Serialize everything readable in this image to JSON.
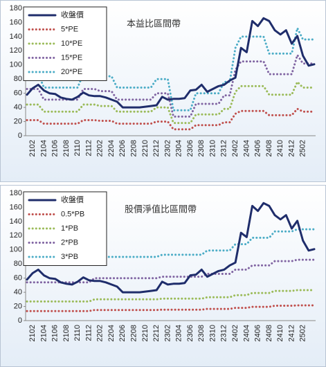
{
  "chart_data": [
    {
      "type": "line",
      "title": "本益比區間帶",
      "legend": "upper left",
      "grid": false,
      "categories": [
        null,
        "2102",
        null,
        "2104",
        null,
        "2106",
        null,
        "2108",
        null,
        "2110",
        null,
        "2112",
        null,
        "2202",
        null,
        "2204",
        null,
        "2206",
        null,
        "2208",
        null,
        "2210",
        null,
        "2212",
        null,
        "2302",
        null,
        "2304",
        null,
        "2306",
        null,
        "2308",
        null,
        "2310",
        null,
        "2312",
        null,
        "2402",
        null,
        "2404",
        null,
        "2406",
        null,
        "2408",
        null,
        "2410",
        null,
        "2412",
        null,
        "2502",
        null,
        null
      ],
      "ylim": [
        0,
        180
      ],
      "yticks": [
        0,
        20,
        40,
        60,
        80,
        100,
        120,
        140,
        160,
        180
      ],
      "series": [
        {
          "name": "收盤價",
          "color": "#1f2d6b",
          "style": "solid",
          "values": [
            58,
            67,
            72,
            64,
            60,
            59,
            54,
            52,
            51,
            55,
            61,
            57,
            56,
            56,
            54,
            51,
            48,
            40,
            40,
            40,
            40,
            41,
            42,
            43,
            55,
            51,
            52,
            52,
            53,
            64,
            65,
            72,
            62,
            66,
            70,
            72,
            78,
            82,
            124,
            118,
            162,
            155,
            166,
            162,
            149,
            143,
            149,
            130,
            141,
            113,
            99,
            101
          ]
        },
        {
          "name": "5*PE",
          "color": "#c0504d",
          "style": "dotted",
          "values": [
            22,
            22,
            22,
            17,
            17,
            17,
            17,
            17,
            17,
            17,
            22,
            22,
            22,
            21,
            21,
            21,
            17,
            17,
            17,
            17,
            17,
            17,
            17,
            20,
            20,
            20,
            9,
            9,
            9,
            9,
            15,
            15,
            15,
            15,
            15,
            19,
            19,
            31,
            35,
            35,
            35,
            35,
            35,
            29,
            29,
            29,
            29,
            29,
            38,
            34,
            34,
            34
          ]
        },
        {
          "name": "10*PE",
          "color": "#9bbb59",
          "style": "dotted",
          "values": [
            44,
            44,
            44,
            34,
            34,
            34,
            34,
            34,
            34,
            34,
            44,
            44,
            44,
            42,
            42,
            42,
            34,
            34,
            34,
            34,
            34,
            34,
            34,
            40,
            40,
            40,
            18,
            18,
            18,
            18,
            30,
            30,
            30,
            30,
            30,
            38,
            38,
            62,
            70,
            70,
            70,
            70,
            70,
            58,
            58,
            58,
            58,
            58,
            76,
            68,
            68,
            68
          ]
        },
        {
          "name": "15*PE",
          "color": "#8064a2",
          "style": "dotted",
          "values": [
            66,
            66,
            66,
            51,
            51,
            51,
            51,
            51,
            51,
            51,
            66,
            66,
            66,
            63,
            63,
            63,
            51,
            51,
            51,
            51,
            51,
            51,
            51,
            60,
            60,
            60,
            27,
            27,
            27,
            27,
            45,
            45,
            45,
            45,
            45,
            57,
            57,
            93,
            105,
            105,
            105,
            105,
            105,
            87,
            87,
            87,
            87,
            87,
            114,
            102,
            102,
            102
          ]
        },
        {
          "name": "20*PE",
          "color": "#4bacc6",
          "style": "dotted",
          "values": [
            88,
            88,
            88,
            68,
            68,
            68,
            68,
            68,
            68,
            68,
            88,
            88,
            88,
            84,
            84,
            84,
            68,
            68,
            68,
            68,
            68,
            68,
            68,
            80,
            80,
            80,
            36,
            36,
            36,
            36,
            60,
            60,
            60,
            60,
            60,
            76,
            76,
            124,
            140,
            140,
            140,
            140,
            140,
            116,
            116,
            116,
            116,
            116,
            152,
            136,
            136,
            136
          ]
        }
      ]
    },
    {
      "type": "line",
      "title": "股價淨值比區間帶",
      "legend": "upper left",
      "grid": false,
      "categories": [
        null,
        "2102",
        null,
        "2104",
        null,
        "2106",
        null,
        "2108",
        null,
        "2110",
        null,
        "2112",
        null,
        "2202",
        null,
        "2204",
        null,
        "2206",
        null,
        "2208",
        null,
        "2210",
        null,
        "2212",
        null,
        "2302",
        null,
        "2304",
        null,
        "2306",
        null,
        "2308",
        null,
        "2310",
        null,
        "2312",
        null,
        "2402",
        null,
        "2404",
        null,
        "2406",
        null,
        "2408",
        null,
        "2410",
        null,
        "2412",
        null,
        "2502",
        null,
        null
      ],
      "ylim": [
        0,
        180
      ],
      "yticks": [
        0,
        20,
        40,
        60,
        80,
        100,
        120,
        140,
        160,
        180
      ],
      "series": [
        {
          "name": "收盤價",
          "color": "#1f2d6b",
          "style": "solid",
          "values": [
            58,
            67,
            72,
            64,
            60,
            59,
            54,
            52,
            51,
            55,
            61,
            57,
            56,
            56,
            54,
            51,
            48,
            40,
            40,
            40,
            40,
            41,
            42,
            43,
            55,
            51,
            52,
            52,
            53,
            64,
            65,
            72,
            62,
            66,
            70,
            72,
            78,
            82,
            124,
            118,
            162,
            155,
            166,
            162,
            149,
            143,
            149,
            130,
            141,
            113,
            99,
            101
          ]
        },
        {
          "name": "0.5*PB",
          "color": "#c0504d",
          "style": "dotted",
          "values": [
            13.5,
            13.5,
            13.5,
            13.5,
            13.5,
            13.5,
            13.5,
            13.5,
            13.5,
            13.5,
            13.5,
            13.5,
            15,
            15,
            15,
            15,
            15,
            15,
            15,
            15,
            15,
            15,
            15,
            15,
            15.5,
            15.5,
            15.5,
            15.5,
            15.5,
            15.5,
            15.5,
            15.5,
            16.5,
            16.5,
            16.5,
            16.5,
            16.5,
            18,
            18,
            18,
            19.5,
            19.5,
            19.5,
            19.5,
            21,
            21,
            21,
            21,
            21.5,
            21.5,
            21.5,
            21.5
          ]
        },
        {
          "name": "1*PB",
          "color": "#9bbb59",
          "style": "dotted",
          "values": [
            27,
            27,
            27,
            27,
            27,
            27,
            27,
            27,
            27,
            27,
            27,
            27,
            30,
            30,
            30,
            30,
            30,
            30,
            30,
            30,
            30,
            30,
            30,
            30,
            31,
            31,
            31,
            31,
            31,
            31,
            31,
            31,
            33,
            33,
            33,
            33,
            33,
            36,
            36,
            36,
            39,
            39,
            39,
            39,
            42,
            42,
            42,
            42,
            43,
            43,
            43,
            43
          ]
        },
        {
          "name": "2*PB",
          "color": "#8064a2",
          "style": "dotted",
          "values": [
            54,
            54,
            54,
            54,
            54,
            54,
            54,
            54,
            54,
            54,
            54,
            54,
            60,
            60,
            60,
            60,
            60,
            60,
            60,
            60,
            60,
            60,
            60,
            60,
            62,
            62,
            62,
            62,
            62,
            62,
            62,
            62,
            66,
            66,
            66,
            66,
            66,
            72,
            72,
            72,
            78,
            78,
            78,
            78,
            84,
            84,
            84,
            84,
            86,
            86,
            86,
            86
          ]
        },
        {
          "name": "3*PB",
          "color": "#4bacc6",
          "style": "dotted",
          "values": [
            81,
            81,
            81,
            81,
            81,
            81,
            81,
            81,
            81,
            81,
            81,
            81,
            90,
            90,
            90,
            90,
            90,
            90,
            90,
            90,
            90,
            90,
            90,
            90,
            93,
            93,
            93,
            93,
            93,
            93,
            93,
            93,
            99,
            99,
            99,
            99,
            99,
            108,
            108,
            108,
            117,
            117,
            117,
            117,
            126,
            126,
            126,
            126,
            129,
            129,
            129,
            129
          ]
        }
      ]
    }
  ]
}
